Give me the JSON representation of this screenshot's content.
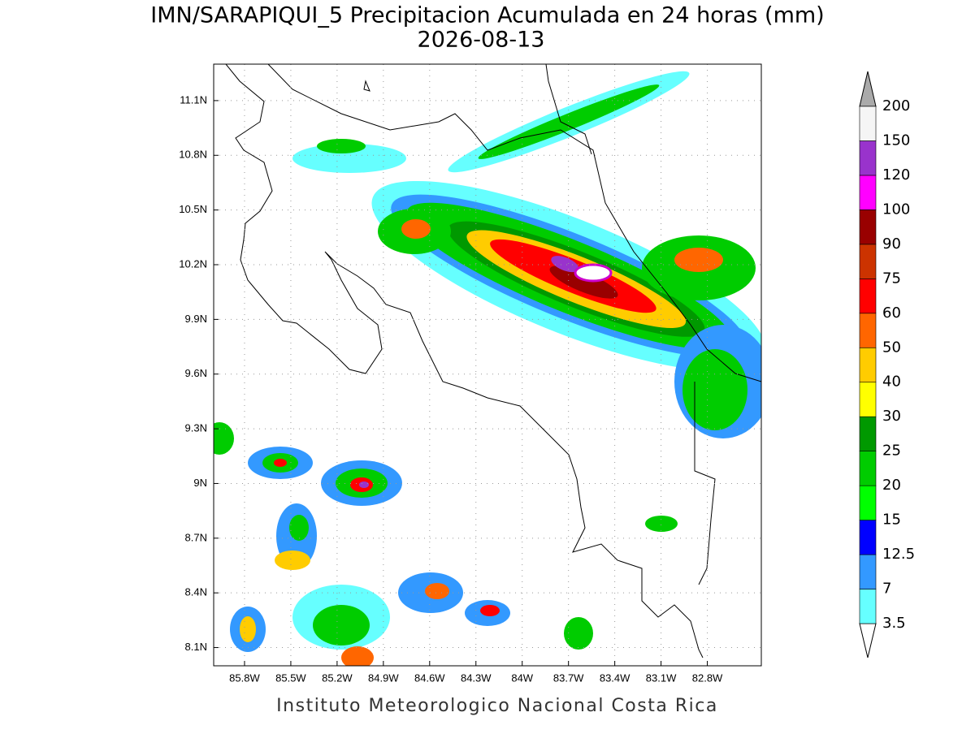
{
  "title": "IMN/SARAPIQUI_5 Precipitacion Acumulada en 24 horas (mm)",
  "subtitle": "2026-08-13",
  "footer": "Instituto Meteorologico Nacional Costa Rica",
  "map": {
    "xlim": [
      -86.0,
      -82.45
    ],
    "ylim": [
      8.0,
      11.3
    ],
    "grid": true,
    "xticks": [
      {
        "value": -85.8,
        "label": "85.8W"
      },
      {
        "value": -85.5,
        "label": "85.5W"
      },
      {
        "value": -85.2,
        "label": "85.2W"
      },
      {
        "value": -84.9,
        "label": "84.9W"
      },
      {
        "value": -84.6,
        "label": "84.6W"
      },
      {
        "value": -84.3,
        "label": "84.3W"
      },
      {
        "value": -84.0,
        "label": "84W"
      },
      {
        "value": -83.7,
        "label": "83.7W"
      },
      {
        "value": -83.4,
        "label": "83.4W"
      },
      {
        "value": -83.1,
        "label": "83.1W"
      },
      {
        "value": -82.8,
        "label": "82.8W"
      }
    ],
    "yticks": [
      {
        "value": 8.1,
        "label": "8.1N"
      },
      {
        "value": 8.4,
        "label": "8.4N"
      },
      {
        "value": 8.7,
        "label": "8.7N"
      },
      {
        "value": 9.0,
        "label": "9N"
      },
      {
        "value": 9.3,
        "label": "9.3N"
      },
      {
        "value": 9.6,
        "label": "9.6N"
      },
      {
        "value": 9.9,
        "label": "9.9N"
      },
      {
        "value": 10.2,
        "label": "10.2N"
      },
      {
        "value": 10.5,
        "label": "10.5N"
      },
      {
        "value": 10.8,
        "label": "10.8N"
      },
      {
        "value": 11.1,
        "label": "11.1N"
      }
    ]
  },
  "colorbar": {
    "levels": [
      3.5,
      7,
      12.5,
      15,
      20,
      25,
      30,
      40,
      50,
      60,
      75,
      90,
      100,
      120,
      150,
      200
    ],
    "colors": [
      "#66ffff",
      "#3399ff",
      "#0000ff",
      "#00ff00",
      "#00cc00",
      "#009900",
      "#ffff00",
      "#ffcc00",
      "#ff6600",
      "#ff0000",
      "#cc3300",
      "#990000",
      "#ff00ff",
      "#9933cc",
      "#f5f5f5"
    ],
    "under_color": "#ffffff",
    "over_color": "#aaaaaa"
  }
}
